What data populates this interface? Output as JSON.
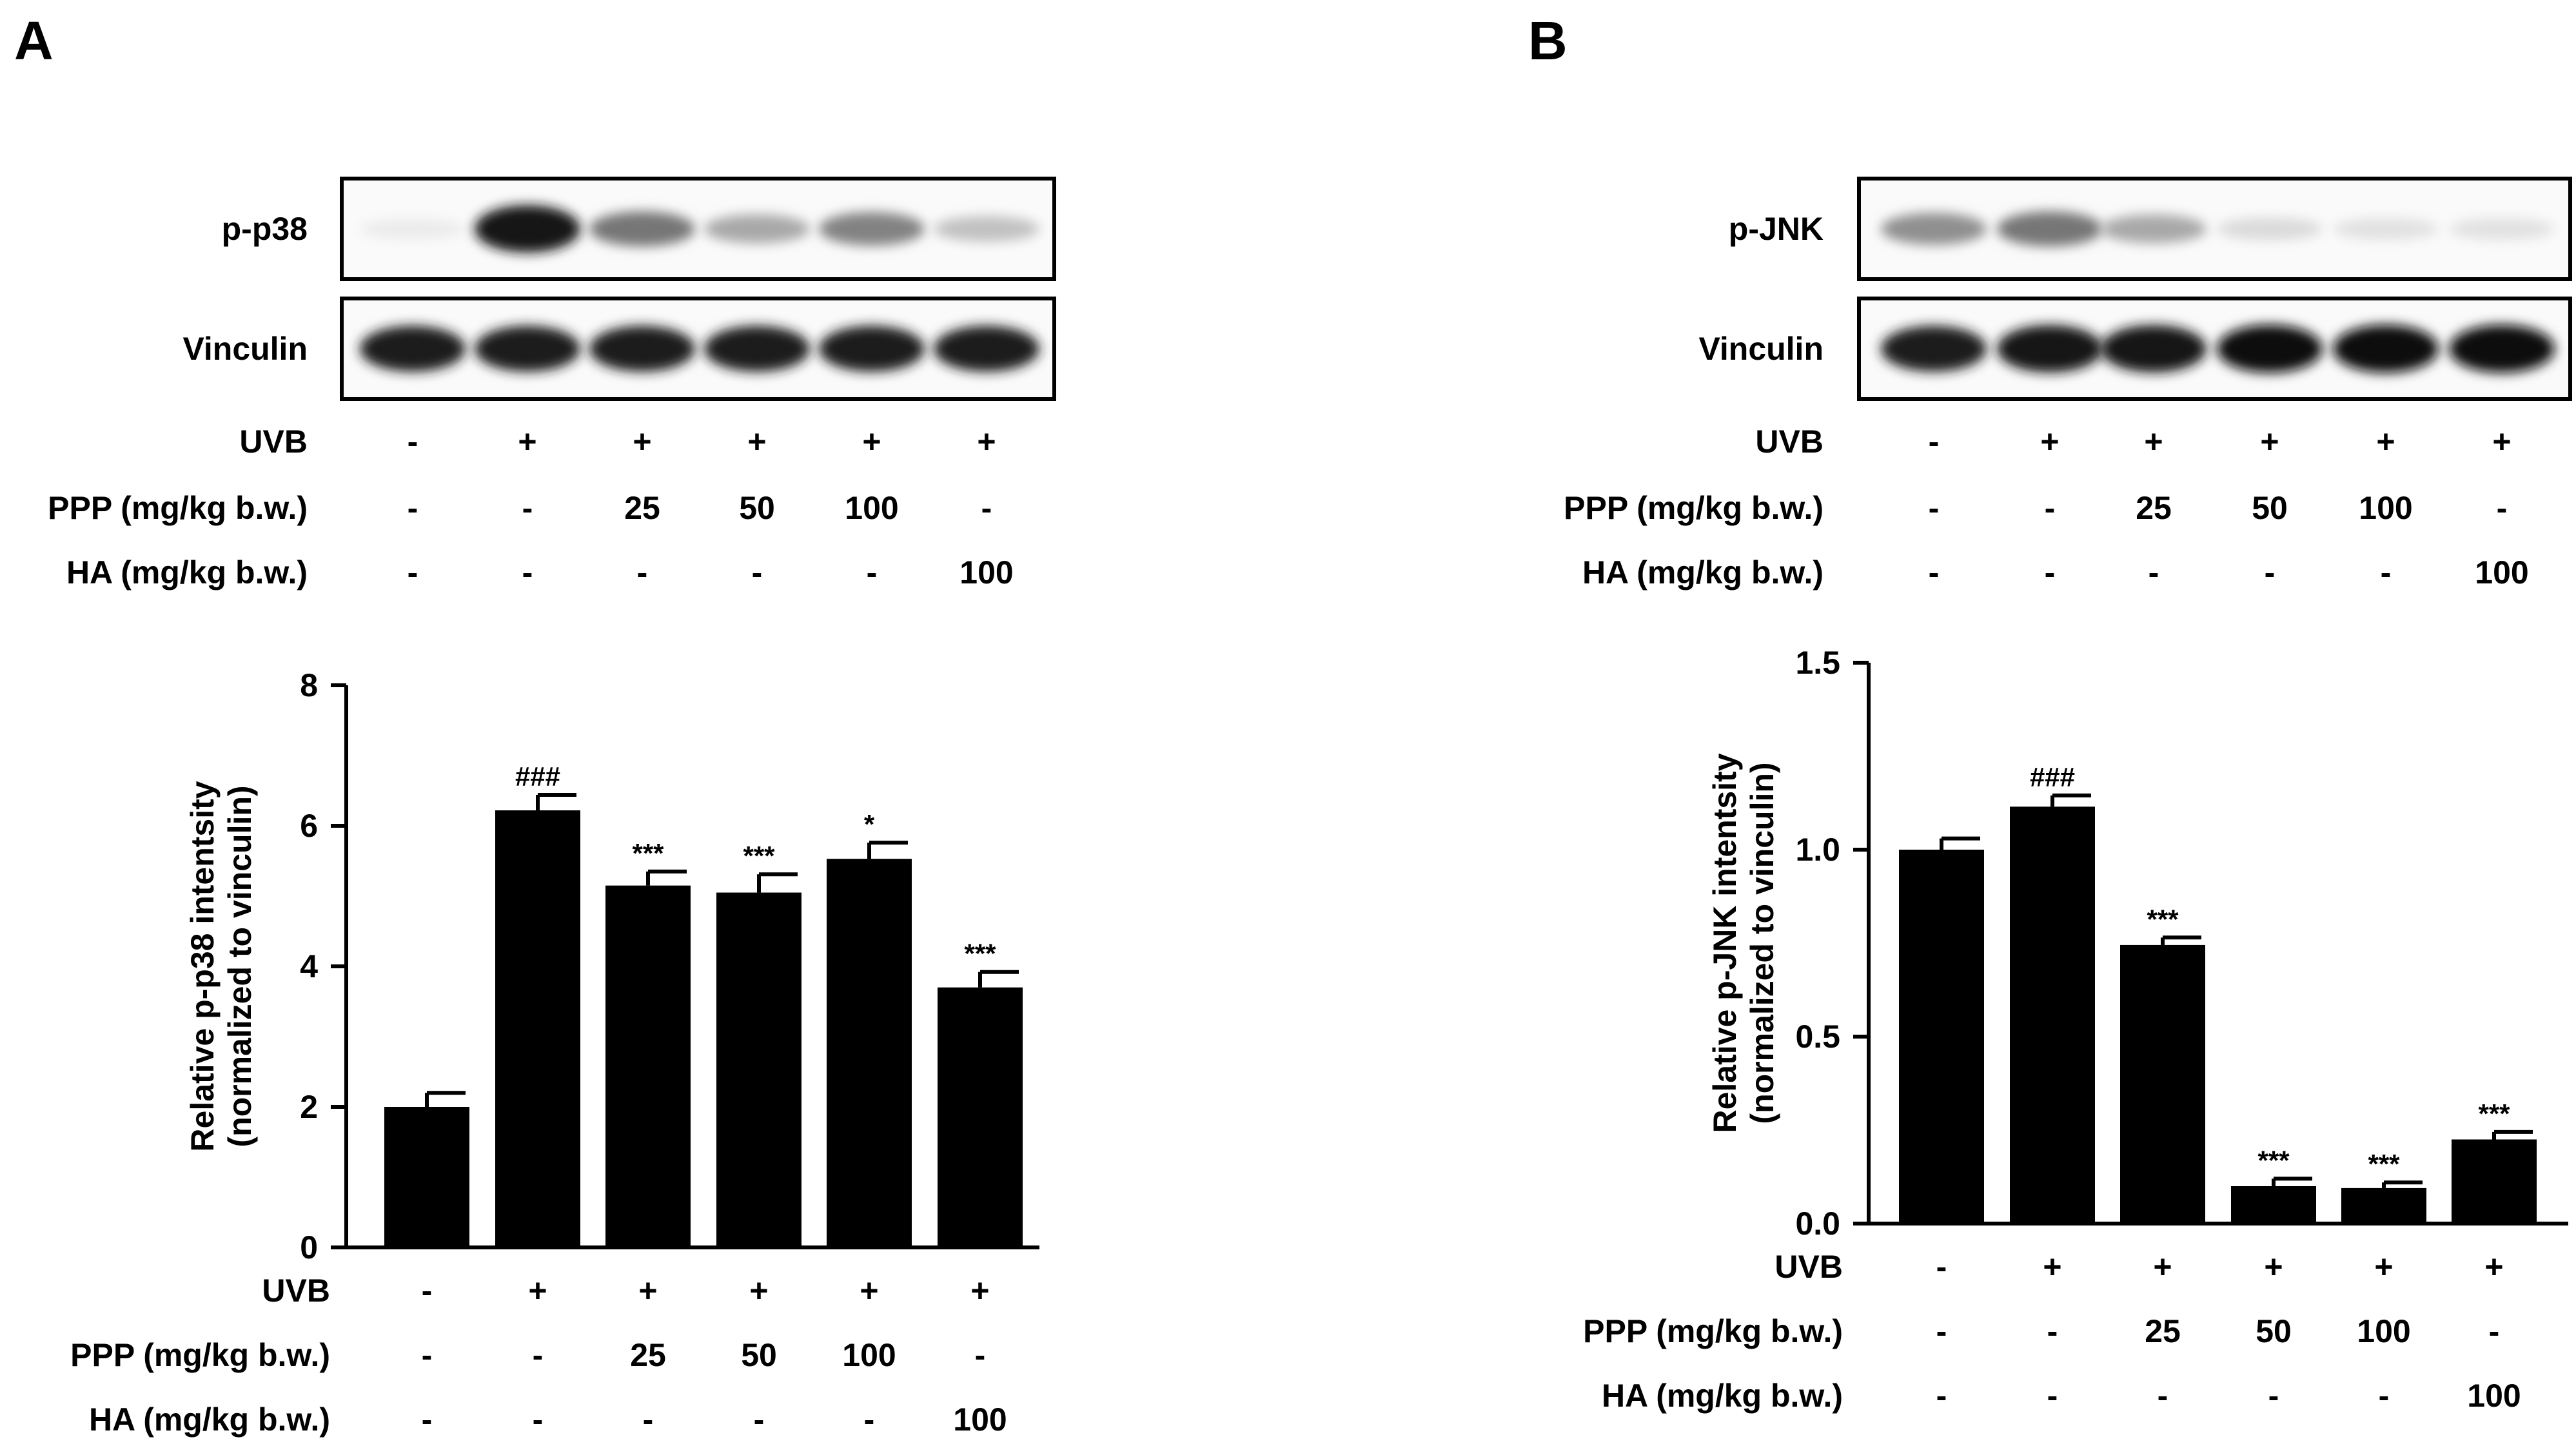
{
  "panels": [
    {
      "label": "A",
      "blots": [
        {
          "name": "p-p38",
          "band_intensity": [
            0.08,
            0.95,
            0.55,
            0.35,
            0.5,
            0.25
          ]
        },
        {
          "name": "Vinculin",
          "band_intensity": [
            0.9,
            0.9,
            0.9,
            0.9,
            0.9,
            0.9
          ]
        }
      ],
      "conditions": [
        {
          "label": "UVB",
          "values": [
            "-",
            "+",
            "+",
            "+",
            "+",
            "+"
          ]
        },
        {
          "label": "PPP (mg/kg b.w.)",
          "values": [
            "-",
            "-",
            "25",
            "50",
            "100",
            "-"
          ]
        },
        {
          "label": "HA (mg/kg b.w.)",
          "values": [
            "-",
            "-",
            "-",
            "-",
            "-",
            "100"
          ]
        }
      ]
    },
    {
      "label": "B",
      "blots": [
        {
          "name": "p-JNK",
          "band_intensity": [
            0.45,
            0.55,
            0.35,
            0.15,
            0.12,
            0.12
          ]
        },
        {
          "name": "Vinculin",
          "band_intensity": [
            0.9,
            0.95,
            0.95,
            0.97,
            0.97,
            0.97
          ]
        }
      ],
      "conditions": [
        {
          "label": "UVB",
          "values": [
            "-",
            "+",
            "+",
            "+",
            "+",
            "+"
          ]
        },
        {
          "label": "PPP (mg/kg b.w.)",
          "values": [
            "-",
            "-",
            "25",
            "50",
            "100",
            "-"
          ]
        },
        {
          "label": "HA (mg/kg b.w.)",
          "values": [
            "-",
            "-",
            "-",
            "-",
            "-",
            "100"
          ]
        }
      ]
    }
  ],
  "chart_data": [
    {
      "type": "bar",
      "panel": "A",
      "ylabel_line1": "Relative p-p38 intentsity",
      "ylabel_line2": "(normalized to vinculin)",
      "ylim": [
        0,
        8
      ],
      "yticks": [
        "0",
        "2",
        "4",
        "6",
        "8"
      ],
      "values": [
        2.0,
        6.22,
        5.15,
        5.05,
        5.53,
        3.7
      ],
      "errors": [
        0.2,
        0.22,
        0.2,
        0.26,
        0.23,
        0.22
      ],
      "significance": [
        "",
        "###",
        "***",
        "***",
        "*",
        "***"
      ],
      "bar_color": "#000000"
    },
    {
      "type": "bar",
      "panel": "B",
      "ylabel_line1": "Relative p-JNK intentsity",
      "ylabel_line2": "(normalized to vinculin)",
      "ylim": [
        0,
        1.5
      ],
      "yticks": [
        "0.0",
        "0.5",
        "1.0",
        "1.5"
      ],
      "values": [
        1.0,
        1.115,
        0.745,
        0.1,
        0.095,
        0.225
      ],
      "errors": [
        0.03,
        0.03,
        0.02,
        0.02,
        0.015,
        0.02
      ],
      "significance": [
        "",
        "###",
        "***",
        "***",
        "***",
        "***"
      ],
      "bar_color": "#000000"
    }
  ]
}
